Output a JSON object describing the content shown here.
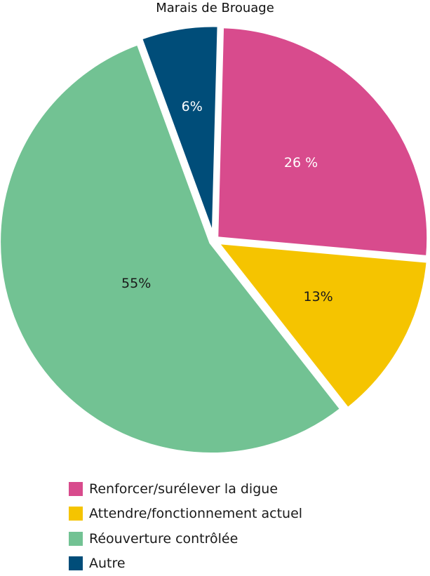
{
  "chart_data": {
    "type": "pie",
    "title": "Marais de Brouage",
    "slices": [
      {
        "name": "Renforcer/surélever la digue",
        "value": 26,
        "label": "26 %",
        "color": "#d84b8d",
        "label_color": "#ffffff"
      },
      {
        "name": "Attendre/fonctionnement actuel",
        "value": 13,
        "label": "13%",
        "color": "#f5c400",
        "label_color": "#1a1a1a"
      },
      {
        "name": "Réouverture contrôlée",
        "value": 55,
        "label": "55%",
        "color": "#72c293",
        "label_color": "#1a1a1a"
      },
      {
        "name": "Autre",
        "value": 6,
        "label": "6%",
        "color": "#004d79",
        "label_color": "#ffffff"
      }
    ],
    "legend_position": "bottom-left"
  }
}
